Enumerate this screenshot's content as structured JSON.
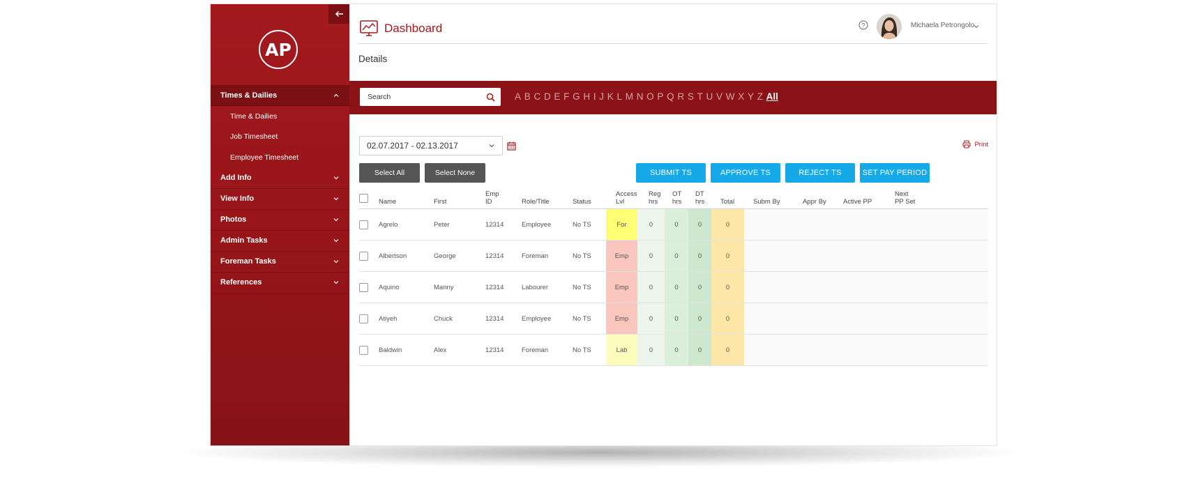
{
  "sidebar": {
    "logo_text": "AP",
    "sections": [
      {
        "label": "Times & Dailies",
        "expanded": true,
        "items": [
          "Time & Dailies",
          "Job Timesheet",
          "Employee Timesheet"
        ]
      },
      {
        "label": "Add Info"
      },
      {
        "label": "View Info"
      },
      {
        "label": "Photos"
      },
      {
        "label": "Admin Tasks"
      },
      {
        "label": "Foreman Tasks"
      },
      {
        "label": "References"
      }
    ]
  },
  "header": {
    "title": "Dashboard",
    "subtitle": "Details",
    "user_name": "Michaela Petrongolo"
  },
  "filter": {
    "search_placeholder": "Search",
    "letters": [
      "A",
      "B",
      "C",
      "D",
      "E",
      "F",
      "G",
      "H",
      "I",
      "J",
      "K",
      "L",
      "M",
      "N",
      "O",
      "P",
      "Q",
      "R",
      "S",
      "T",
      "U",
      "V",
      "W",
      "X",
      "Y",
      "Z"
    ],
    "all_label": "All"
  },
  "toolbar": {
    "date_range": "02.07.2017 - 02.13.2017",
    "print_label": "Print",
    "select_all": "Select All",
    "select_none": "Select None",
    "submit": "SUBMIT TS",
    "approve": "APPROVE TS",
    "reject": "REJECT TS",
    "set_pay_period": "SET PAY PERIOD"
  },
  "table": {
    "headers": {
      "name": "Name",
      "first": "First",
      "emp_id": [
        "Emp",
        "ID"
      ],
      "role": "Role/Title",
      "status": "Status",
      "access": [
        "Access",
        "Lvl"
      ],
      "reg": [
        "Reg",
        "hrs"
      ],
      "ot": [
        "OT",
        "hrs"
      ],
      "dt": [
        "DT",
        "hrs"
      ],
      "total": "Total",
      "subm_by": "Subm By",
      "appr_by": "Appr By",
      "active_pp": "Active PP",
      "next_pp": [
        "Next",
        "PP Set"
      ]
    },
    "rows": [
      {
        "name": "Agrelo",
        "first": "Peter",
        "emp_id": "12314",
        "role": "Employee",
        "status": "No TS",
        "access": "For",
        "access_color": "#fefe75",
        "reg": "0",
        "ot": "0",
        "dt": "0",
        "total": "0"
      },
      {
        "name": "Albertson",
        "first": "George",
        "emp_id": "12314",
        "role": "Foreman",
        "status": "No TS",
        "access": "Emp",
        "access_color": "#fbc6bd",
        "reg": "0",
        "ot": "0",
        "dt": "0",
        "total": "0"
      },
      {
        "name": "Aquino",
        "first": "Manny",
        "emp_id": "12314",
        "role": "Labourer",
        "status": "No TS",
        "access": "Emp",
        "access_color": "#fbc6bd",
        "reg": "0",
        "ot": "0",
        "dt": "0",
        "total": "0"
      },
      {
        "name": "Atiyeh",
        "first": "Chuck",
        "emp_id": "12314",
        "role": "Employee",
        "status": "No TS",
        "access": "Emp",
        "access_color": "#fbc6bd",
        "reg": "0",
        "ot": "0",
        "dt": "0",
        "total": "0"
      },
      {
        "name": "Baldwin",
        "first": "Alex",
        "emp_id": "12314",
        "role": "Foreman",
        "status": "No TS",
        "access": "Lab",
        "access_color": "#fefcbd",
        "reg": "0",
        "ot": "0",
        "dt": "0",
        "total": "0"
      }
    ]
  },
  "colors": {
    "brand_red": "#a3191e",
    "bar_red": "#8b1217",
    "action_blue": "#15a9e8",
    "button_dark": "#555555"
  },
  "icons": [
    "arrow-left-icon",
    "dashboard-chart-icon",
    "help-icon",
    "search-icon",
    "calendar-icon",
    "print-icon",
    "chevron-up-icon",
    "chevron-down-icon"
  ]
}
